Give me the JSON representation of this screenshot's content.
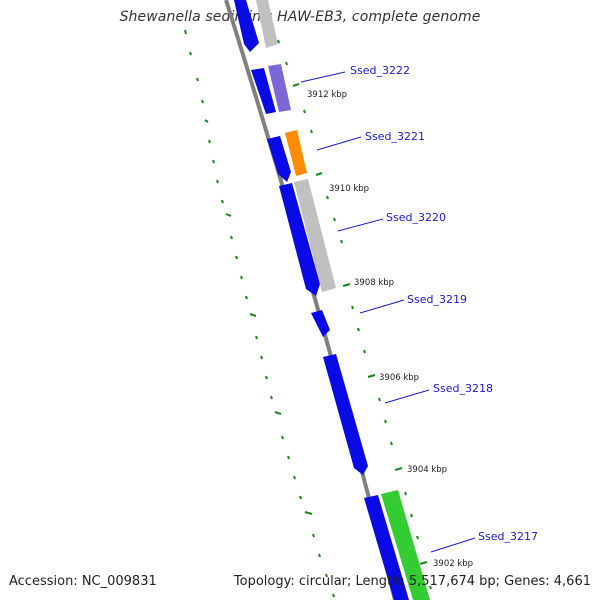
{
  "title": "Shewanella sediminis HAW-EB3, complete genome",
  "accession_text": "Accession: NC_009831",
  "summary_text": "Topology: circular; Length: 5,517,674 bp; Genes: 4,661",
  "colors": {
    "backbone": "#808080",
    "tick": "#1a8a1a",
    "cds_strand": "#0a0ae6",
    "gene_gray": "#c0c0c0",
    "gene_purple": "#7b68d6",
    "gene_orange": "#ff8c00",
    "gene_green": "#33cc33",
    "label": "#1a1ad9"
  },
  "gene_labels": [
    {
      "id": "Ssed_3222"
    },
    {
      "id": "Ssed_3221"
    },
    {
      "id": "Ssed_3220"
    },
    {
      "id": "Ssed_3219"
    },
    {
      "id": "Ssed_3218"
    },
    {
      "id": "Ssed_3217"
    }
  ],
  "kbp_labels": [
    {
      "text": "3912 kbp"
    },
    {
      "text": "3910 kbp"
    },
    {
      "text": "3908 kbp"
    },
    {
      "text": "3906 kbp"
    },
    {
      "text": "3904 kbp"
    },
    {
      "text": "3902 kbp"
    }
  ]
}
